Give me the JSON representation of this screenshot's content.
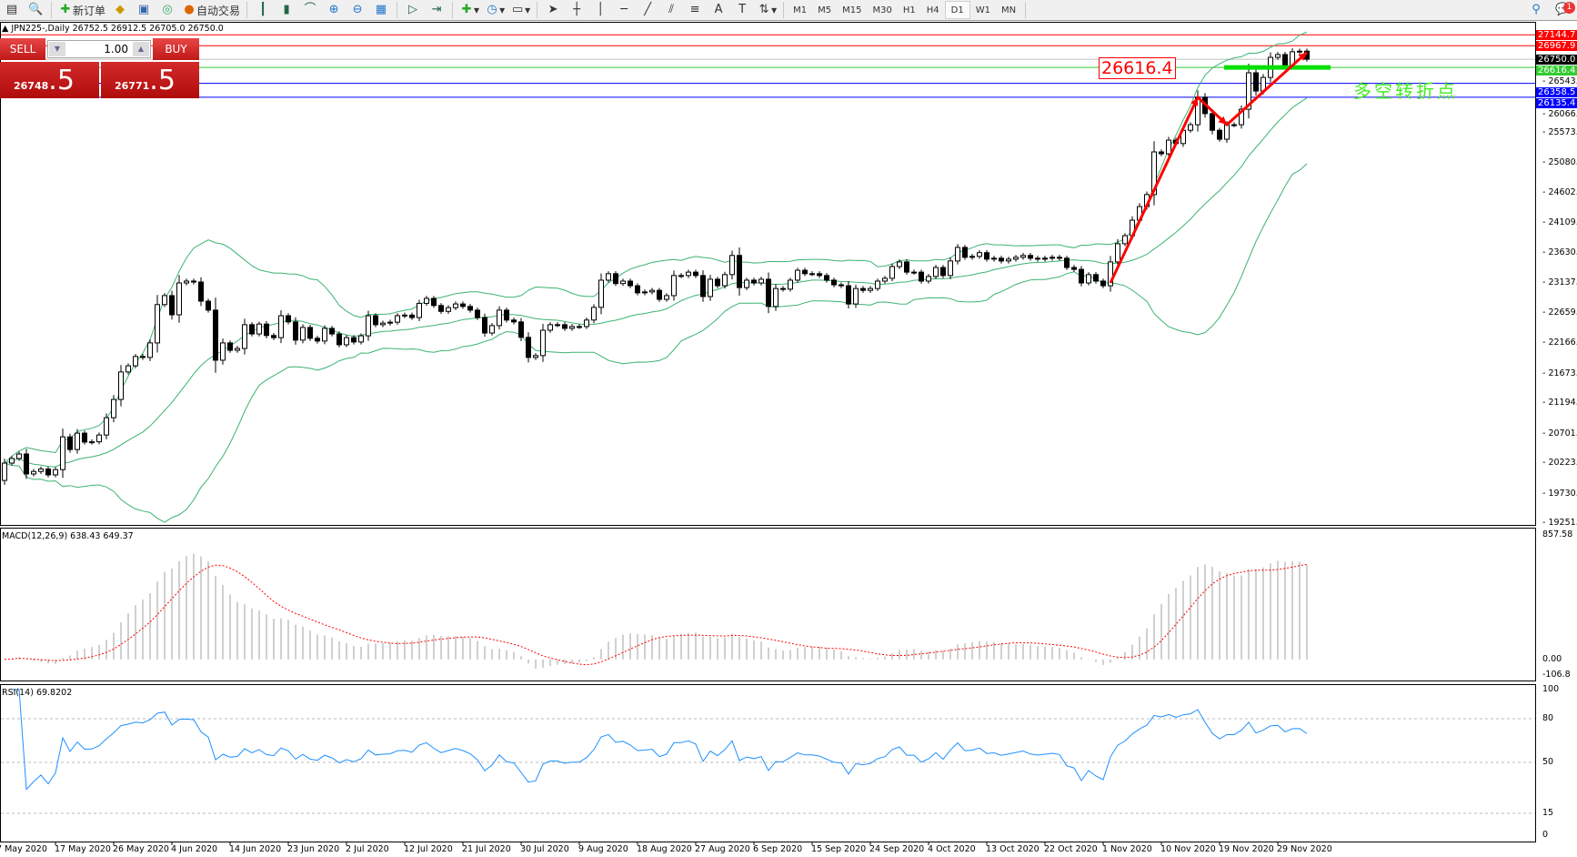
{
  "toolbar": {
    "new_order": "新订单",
    "auto_trading": "自动交易",
    "timeframes": [
      "M1",
      "M5",
      "M15",
      "M30",
      "H1",
      "H4",
      "D1",
      "W1",
      "MN"
    ],
    "active_timeframe": "D1",
    "notification_count": "1",
    "icons": [
      "new-chart-icon",
      "profiles-icon",
      "new-order-icon",
      "market-watch-icon",
      "navigator-icon",
      "signals-icon",
      "auto-trading-icon",
      "bar-chart-icon",
      "candlestick-icon",
      "line-chart-icon",
      "zoom-in-icon",
      "zoom-out-icon",
      "tile-windows-icon",
      "auto-scroll-icon",
      "chart-shift-icon",
      "indicators-icon",
      "periods-icon",
      "templates-icon",
      "cursor-icon",
      "crosshair-icon",
      "vertical-line-icon",
      "horizontal-line-icon",
      "trendline-icon",
      "channel-icon",
      "fibonacci-icon",
      "text-icon",
      "text-label-icon",
      "arrows-icon",
      "search-icon",
      "notification-icon"
    ]
  },
  "chart": {
    "header": "JPN225-,Daily  26752.5 26912.5 26705.0 26750.0",
    "symbol": "JPN225-",
    "period": "Daily"
  },
  "trade_panel": {
    "sell_label": "SELL",
    "buy_label": "BUY",
    "lot": "1.00",
    "sell_price_main": "26748",
    "sell_price_frac": ".5",
    "buy_price_main": "26771",
    "buy_price_frac": ".5"
  },
  "annotations": {
    "price_box": "26616.4",
    "text": "多空转折点",
    "arrow_path_prices": [
      [
        152,
        23130
      ],
      [
        164,
        26135
      ],
      [
        168,
        25690
      ],
      [
        179,
        26860
      ]
    ]
  },
  "colors": {
    "bull": "#ffffff",
    "bear": "#000000",
    "bands": "#3cb371",
    "macd_hist": "#c0c0c0",
    "macd_signal": "#ff0000",
    "rsi": "#1e90ff",
    "arrow": "#ff0000",
    "support_bar": "#00e000"
  },
  "chart_data": {
    "type": "candlestick",
    "x_tick_labels": [
      {
        "bar": -1,
        "label": "7 May 2020"
      },
      {
        "bar": 7,
        "label": "17 May 2020"
      },
      {
        "bar": 15,
        "label": "26 May 2020"
      },
      {
        "bar": 23,
        "label": "4 Jun 2020"
      },
      {
        "bar": 31,
        "label": "14 Jun 2020"
      },
      {
        "bar": 39,
        "label": "23 Jun 2020"
      },
      {
        "bar": 47,
        "label": "2 Jul 2020"
      },
      {
        "bar": 55,
        "label": "12 Jul 2020"
      },
      {
        "bar": 63,
        "label": "21 Jul 2020"
      },
      {
        "bar": 71,
        "label": "30 Jul 2020"
      },
      {
        "bar": 79,
        "label": "9 Aug 2020"
      },
      {
        "bar": 87,
        "label": "18 Aug 2020"
      },
      {
        "bar": 95,
        "label": "27 Aug 2020"
      },
      {
        "bar": 103,
        "label": "6 Sep 2020"
      },
      {
        "bar": 111,
        "label": "15 Sep 2020"
      },
      {
        "bar": 119,
        "label": "24 Sep 2020"
      },
      {
        "bar": 127,
        "label": "4 Oct 2020"
      },
      {
        "bar": 135,
        "label": "13 Oct 2020"
      },
      {
        "bar": 143,
        "label": "22 Oct 2020"
      },
      {
        "bar": 151,
        "label": "1 Nov 2020"
      },
      {
        "bar": 159,
        "label": "10 Nov 2020"
      },
      {
        "bar": 167,
        "label": "19 Nov 2020"
      },
      {
        "bar": 175,
        "label": "29 Nov 2020"
      }
    ],
    "first_open": 19935,
    "close": [
      20215,
      20290,
      20363,
      20040,
      20080,
      20120,
      20025,
      20110,
      20640,
      20435,
      20700,
      20555,
      20560,
      20670,
      20950,
      21245,
      21690,
      21790,
      21940,
      21925,
      22160,
      22780,
      22925,
      22615,
      23130,
      23160,
      23145,
      22835,
      22690,
      21880,
      22160,
      22040,
      22070,
      22455,
      22305,
      22465,
      22280,
      22245,
      22600,
      22500,
      22205,
      22410,
      22235,
      22190,
      22395,
      22305,
      22130,
      22245,
      22175,
      22275,
      22600,
      22455,
      22480,
      22495,
      22600,
      22610,
      22570,
      22800,
      22880,
      22765,
      22670,
      22730,
      22790,
      22750,
      22690,
      22570,
      22320,
      22440,
      22690,
      22530,
      22500,
      22250,
      21925,
      21955,
      22365,
      22455,
      22455,
      22395,
      22425,
      22425,
      22530,
      22735,
      23175,
      23280,
      23120,
      23160,
      23085,
      22970,
      22985,
      23010,
      22865,
      22925,
      23250,
      23250,
      23305,
      23250,
      22910,
      23190,
      23085,
      23265,
      23575,
      23055,
      23175,
      23130,
      23190,
      22750,
      23040,
      23030,
      23175,
      23335,
      23280,
      23280,
      23250,
      23175,
      23100,
      23085,
      22790,
      23040,
      23010,
      23040,
      23160,
      23205,
      23395,
      23470,
      23305,
      23305,
      23160,
      23235,
      23380,
      23250,
      23485,
      23705,
      23545,
      23560,
      23620,
      23515,
      23530,
      23485,
      23515,
      23545,
      23575,
      23530,
      23515,
      23530,
      23545,
      23530,
      23380,
      23350,
      23130,
      23265,
      23160,
      23085,
      23470,
      23765,
      23895,
      24145,
      24365,
      24560,
      25250,
      25220,
      25440,
      25385,
      25600,
      25690,
      26135,
      25870,
      25600,
      25455,
      25690,
      25690,
      25940,
      26530,
      26235,
      26455,
      26780,
      26825,
      26650,
      26870,
      26880,
      26750
    ],
    "price_axis_ticks": [
      "26543.0",
      "26066.5",
      "25573.5",
      "25080.5",
      "24602.0",
      "24109.0",
      "23630.5",
      "23137.5",
      "22659.0",
      "22166.0",
      "21673.0",
      "21194.5",
      "20701.5",
      "20223.0",
      "19730.0",
      "19251.5"
    ],
    "price_range": [
      19251.5,
      27144.7
    ],
    "horizontal_lines": [
      {
        "price": 27144.7,
        "label": "27144.7",
        "color": "#ff0000"
      },
      {
        "price": 26967.9,
        "label": "26967.9",
        "color": "#ff0000"
      },
      {
        "price": 26750.0,
        "label": "26750.0",
        "color": "#c0c0c0",
        "label_bg": "#000000"
      },
      {
        "price": 26616.4,
        "label": "26616.4",
        "color": "#32cd32"
      },
      {
        "price": 26358.5,
        "label": "26358.5",
        "color": "#0000ff"
      },
      {
        "price": 26135.4,
        "label": "26135.4",
        "color": "#0000ff"
      }
    ],
    "bollinger": {
      "period": 20,
      "deviation": 2
    },
    "macd": {
      "label": "MACD(12,26,9) 638.43 649.37",
      "fast": 12,
      "slow": 26,
      "signal": 9,
      "axis_max": "857.58",
      "axis_zero": "0.00",
      "axis_min": "-106.8",
      "range": [
        -106.8,
        857.58
      ]
    },
    "rsi": {
      "label": "RSI(14) 69.8202",
      "period": 14,
      "levels": [
        "100",
        "80",
        "50",
        "15",
        "0"
      ],
      "dashed_levels": [
        80,
        50,
        15
      ]
    }
  }
}
